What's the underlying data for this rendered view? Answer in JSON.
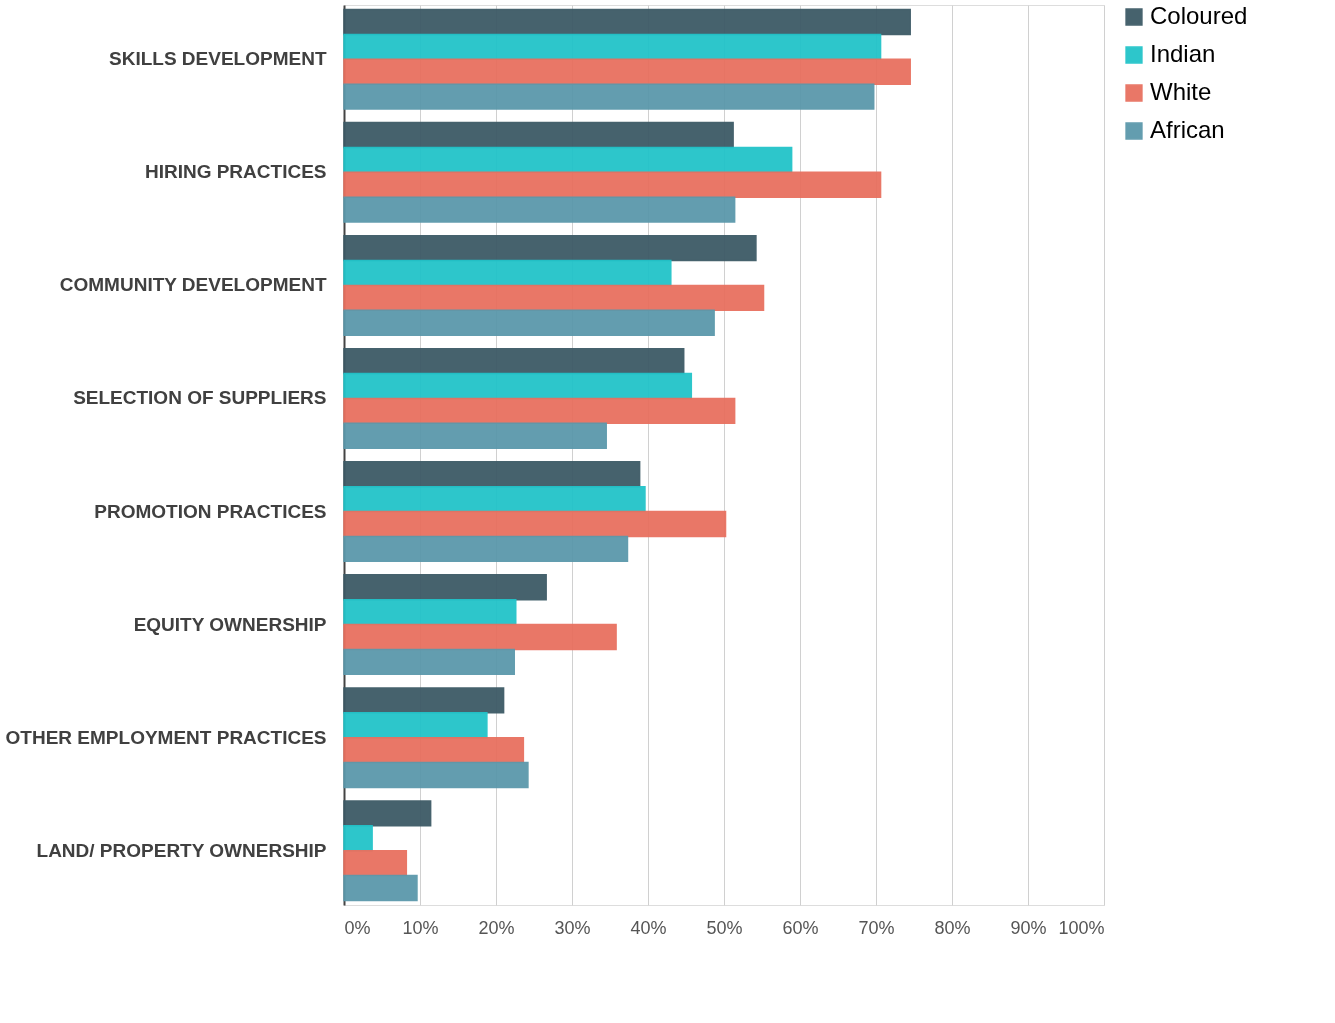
{
  "chart_data": {
    "type": "bar",
    "orientation": "horizontal",
    "categories": [
      "SKILLS DEVELOPMENT",
      "HIRING PRACTICES",
      "COMMUNITY DEVELOPMENT",
      "SELECTION OF SUPPLIERS",
      "PROMOTION PRACTICES",
      "EQUITY OWNERSHIP",
      "OTHER EMPLOYMENT PRACTICES",
      "LAND/ PROPERTY OWNERSHIP"
    ],
    "series": [
      {
        "name": "Coloured",
        "color": "#3d5a66",
        "values": [
          74.5,
          51.2,
          54.2,
          44.7,
          38.9,
          26.6,
          21.0,
          11.4
        ]
      },
      {
        "name": "Indian",
        "color": "#22c3c9",
        "values": [
          70.6,
          58.9,
          43.0,
          45.7,
          39.6,
          22.6,
          18.8,
          3.7
        ]
      },
      {
        "name": "White",
        "color": "#e8705f",
        "values": [
          74.5,
          70.6,
          55.2,
          51.4,
          50.2,
          35.8,
          23.6,
          8.2
        ]
      },
      {
        "name": "African",
        "color": "#5b98ab",
        "values": [
          69.7,
          51.4,
          48.7,
          34.5,
          37.3,
          22.4,
          24.2,
          9.6
        ]
      }
    ],
    "xlim": [
      0,
      100
    ],
    "xticks": [
      {
        "value": 0,
        "label": "0%"
      },
      {
        "value": 10,
        "label": "10%"
      },
      {
        "value": 20,
        "label": "20%"
      },
      {
        "value": 30,
        "label": "30%"
      },
      {
        "value": 40,
        "label": "40%"
      },
      {
        "value": 50,
        "label": "50%"
      },
      {
        "value": 60,
        "label": "60%"
      },
      {
        "value": 70,
        "label": "70%"
      },
      {
        "value": 80,
        "label": "80%"
      },
      {
        "value": 90,
        "label": "90%"
      },
      {
        "value": 100,
        "label": "100%"
      }
    ],
    "grid": "x",
    "legend": "right"
  }
}
